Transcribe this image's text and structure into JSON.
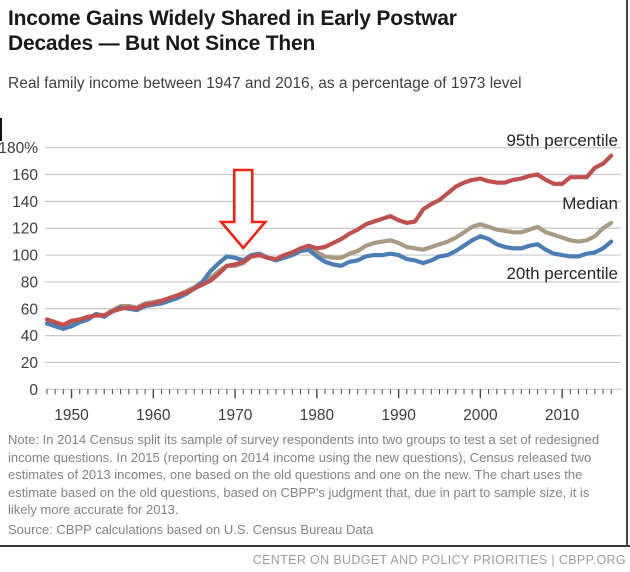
{
  "header": {
    "title_line1": "Income Gains Widely Shared in Early Postwar",
    "title_line2": "Decades — But Not Since Then",
    "subtitle": "Real family income between 1947 and 2016, as a percentage of 1973 level"
  },
  "chart_data": {
    "type": "line",
    "title": "Real family income between 1947 and 2016, as a percentage of 1973 level",
    "xlabel": "",
    "ylabel": "Percent of 1973 level",
    "ylim": [
      0,
      180
    ],
    "ytick_interval": 20,
    "ytick_labels": [
      "0",
      "20",
      "40",
      "60",
      "80",
      "100",
      "120",
      "140",
      "160",
      "180%"
    ],
    "xticks": [
      1950,
      1960,
      1970,
      1980,
      1990,
      2000,
      2010
    ],
    "grid": true,
    "legend_position": "inline-right",
    "x_start": 1947,
    "x_end": 2016,
    "annotation_arrow": {
      "year": 1971,
      "color": "#f02314",
      "meaning": "points to 1973 level"
    },
    "colors": {
      "gridline": "#c8c8c8",
      "tick": "#464646",
      "axis_text": "#3d3d3d",
      "label_text": "#262626"
    },
    "series": [
      {
        "name": "95th percentile",
        "color": "#c0504d",
        "values": [
          52,
          50,
          48,
          51,
          52,
          54,
          55,
          55,
          58,
          60,
          61,
          60,
          63,
          64,
          66,
          68,
          70,
          72,
          75,
          78,
          81,
          86,
          92,
          93,
          95,
          99,
          100,
          98,
          97,
          100,
          102,
          105,
          107,
          105,
          106,
          109,
          112,
          116,
          119,
          123,
          125,
          127,
          129,
          126,
          124,
          125,
          134,
          138,
          141,
          146,
          151,
          154,
          156,
          157,
          155,
          154,
          154,
          156,
          157,
          159,
          160,
          156,
          153,
          153,
          158,
          158,
          158,
          165,
          168,
          174
        ]
      },
      {
        "name": "Median",
        "color": "#a99b83",
        "values": [
          49,
          48,
          47,
          49,
          51,
          53,
          56,
          55,
          59,
          62,
          62,
          61,
          64,
          65,
          66,
          68,
          70,
          73,
          76,
          80,
          83,
          88,
          92,
          92,
          94,
          99,
          100,
          98,
          96,
          99,
          100,
          104,
          105,
          102,
          99,
          98,
          98,
          101,
          103,
          107,
          109,
          110,
          111,
          109,
          106,
          105,
          104,
          106,
          108,
          110,
          113,
          117,
          121,
          123,
          121,
          119,
          118,
          117,
          117,
          119,
          121,
          117,
          115,
          113,
          111,
          110,
          111,
          114,
          120,
          124
        ]
      },
      {
        "name": "20th percentile",
        "color": "#4a7eb5",
        "values": [
          49,
          47,
          45,
          47,
          50,
          52,
          56,
          54,
          58,
          61,
          60,
          59,
          62,
          63,
          64,
          66,
          68,
          71,
          75,
          80,
          88,
          94,
          99,
          98,
          96,
          100,
          101,
          98,
          96,
          98,
          100,
          103,
          104,
          99,
          95,
          93,
          92,
          95,
          96,
          99,
          100,
          100,
          101,
          100,
          97,
          96,
          94,
          96,
          99,
          100,
          103,
          107,
          111,
          114,
          112,
          108,
          106,
          105,
          105,
          107,
          108,
          104,
          101,
          100,
          99,
          99,
          101,
          102,
          105,
          110
        ]
      }
    ]
  },
  "notes": {
    "note": "Note: In 2014 Census split its sample of survey respondents into two groups to test a set of redesigned income questions.  In 2015 (reporting on 2014 income using the new questions), Census released two estimates of 2013 incomes, one based on the old questions and one on the new.  The chart uses the estimate based on the old questions, based on CBPP's judgment that, due in part to sample size, it is likely more accurate for 2013.",
    "source": "Source: CBPP calculations based on U.S. Census Bureau Data"
  },
  "footer": {
    "text": "CENTER ON BUDGET AND POLICY PRIORITIES | CBPP.ORG"
  }
}
